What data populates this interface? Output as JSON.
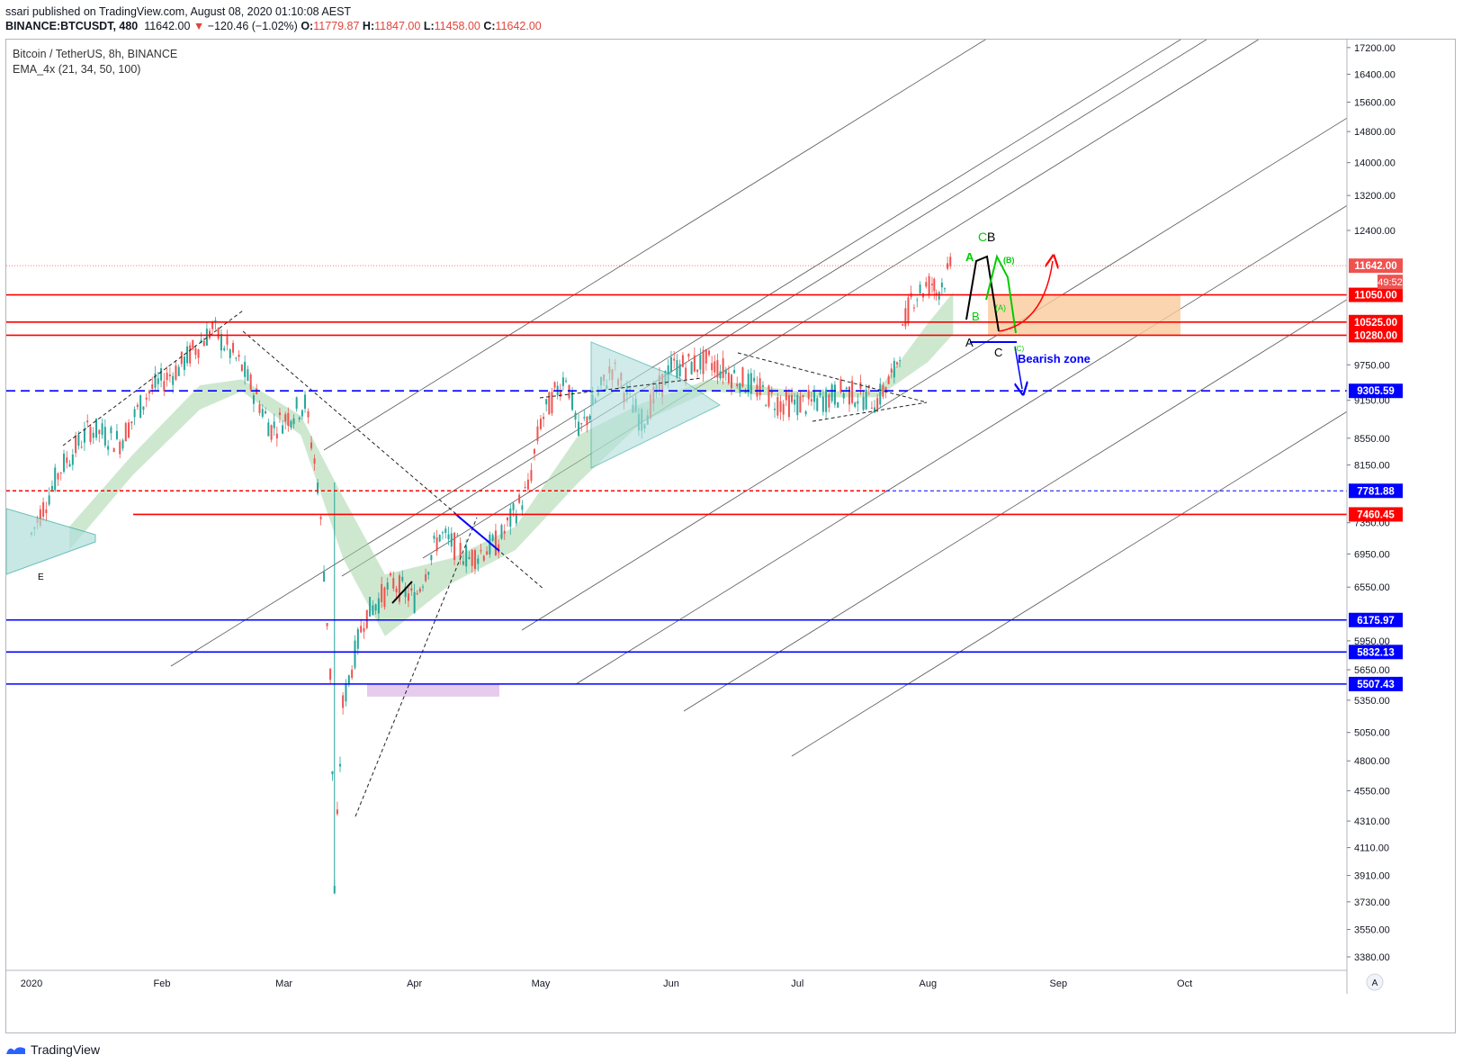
{
  "header": {
    "published": "ssari published on TradingView.com, August 08, 2020 01:10:08 AEST",
    "symbol": "BINANCE:BTCUSDT, 480",
    "price": "11642.00",
    "change": "−120.46 (−1.02%)",
    "o_label": "O:",
    "o_value": "11779.87",
    "h_label": "H:",
    "h_value": "11847.00",
    "l_label": "L:",
    "l_value": "11458.00",
    "c_label": "C:",
    "c_value": "11642.00"
  },
  "legend": {
    "title": "Bitcoin / TetherUS, 8h, BINANCE",
    "indicator": "EMA_4x (21, 34, 50, 100)"
  },
  "countdown": "49:52",
  "footer": {
    "brand": "TradingView"
  },
  "colors": {
    "up": "#26a69a",
    "down": "#ef5350",
    "level_red": "#ff0000",
    "level_blue": "#0000ff",
    "zone_orange": "#f9cb9c",
    "zone_pink": "#e1bee7",
    "ema_band": "#a5d6a7"
  },
  "chart_data": {
    "type": "candlestick",
    "x_axis": {
      "labels": [
        "2020",
        "Feb",
        "Mar",
        "Apr",
        "May",
        "Jun",
        "Jul",
        "Aug",
        "Sep",
        "Oct"
      ]
    },
    "y_axis": {
      "scale": "log",
      "ticks": [
        17200,
        16400,
        15600,
        14800,
        14000,
        13200,
        12400,
        11642,
        11050,
        10525,
        10280,
        9750,
        9305.59,
        9150,
        8550,
        8150,
        7781.88,
        7460.45,
        7350,
        6950,
        6550,
        6175.97,
        5950,
        5832.13,
        5650,
        5507.43,
        5350,
        5050,
        4800,
        4550,
        4310,
        4110,
        3910,
        3730,
        3550,
        3380
      ],
      "ylim": [
        3300,
        17500
      ]
    },
    "price_path": [
      {
        "d": "2020-01-01",
        "v": 7200
      },
      {
        "d": "2020-01-08",
        "v": 8100
      },
      {
        "d": "2020-01-15",
        "v": 8700
      },
      {
        "d": "2020-01-22",
        "v": 8500
      },
      {
        "d": "2020-01-29",
        "v": 9300
      },
      {
        "d": "2020-02-05",
        "v": 9700
      },
      {
        "d": "2020-02-13",
        "v": 10400
      },
      {
        "d": "2020-02-20",
        "v": 9700
      },
      {
        "d": "2020-02-27",
        "v": 8700
      },
      {
        "d": "2020-03-06",
        "v": 9100
      },
      {
        "d": "2020-03-09",
        "v": 7900
      },
      {
        "d": "2020-03-12",
        "v": 5600
      },
      {
        "d": "2020-03-13",
        "v": 3800
      },
      {
        "d": "2020-03-15",
        "v": 5300
      },
      {
        "d": "2020-03-20",
        "v": 6200
      },
      {
        "d": "2020-03-27",
        "v": 6600
      },
      {
        "d": "2020-04-01",
        "v": 6400
      },
      {
        "d": "2020-04-07",
        "v": 7200
      },
      {
        "d": "2020-04-14",
        "v": 6900
      },
      {
        "d": "2020-04-21",
        "v": 7100
      },
      {
        "d": "2020-04-28",
        "v": 7800
      },
      {
        "d": "2020-05-01",
        "v": 8800
      },
      {
        "d": "2020-05-07",
        "v": 9600
      },
      {
        "d": "2020-05-10",
        "v": 8600
      },
      {
        "d": "2020-05-18",
        "v": 9700
      },
      {
        "d": "2020-05-25",
        "v": 8800
      },
      {
        "d": "2020-06-01",
        "v": 9700
      },
      {
        "d": "2020-06-10",
        "v": 9800
      },
      {
        "d": "2020-06-20",
        "v": 9400
      },
      {
        "d": "2020-06-27",
        "v": 9100
      },
      {
        "d": "2020-07-05",
        "v": 9100
      },
      {
        "d": "2020-07-12",
        "v": 9300
      },
      {
        "d": "2020-07-20",
        "v": 9150
      },
      {
        "d": "2020-07-24",
        "v": 9600
      },
      {
        "d": "2020-07-28",
        "v": 11000
      },
      {
        "d": "2020-08-02",
        "v": 11300
      },
      {
        "d": "2020-08-03",
        "v": 11100
      },
      {
        "d": "2020-08-07",
        "v": 11642
      }
    ],
    "price_lines": [
      {
        "value": 11642.0,
        "label": "11642.00",
        "color": "#ef5350",
        "style": "dotted"
      },
      {
        "value": 11050.0,
        "label": "11050.00",
        "color": "#ff0000",
        "style": "solid"
      },
      {
        "value": 10525.0,
        "label": "10525.00",
        "color": "#ff0000",
        "style": "solid"
      },
      {
        "value": 10280.0,
        "label": "10280.00",
        "color": "#ff0000",
        "style": "solid"
      },
      {
        "value": 9305.59,
        "label": "9305.59",
        "color": "#0000ff",
        "style": "dashed"
      },
      {
        "value": 7781.88,
        "label": "7781.88",
        "color": "#0000ff",
        "style": "dashed"
      },
      {
        "value": 7460.45,
        "label": "7460.45",
        "color": "#ff0000",
        "style": "solid"
      },
      {
        "value": 6175.97,
        "label": "6175.97",
        "color": "#0000ff",
        "style": "solid"
      },
      {
        "value": 5832.13,
        "label": "5832.13",
        "color": "#0000ff",
        "style": "solid"
      },
      {
        "value": 5507.43,
        "label": "5507.43",
        "color": "#0000ff",
        "style": "solid"
      }
    ],
    "annotations": [
      "E",
      "A",
      "B",
      "C",
      "CB",
      "(B)",
      "(A)",
      "(C)",
      "Bearish zone"
    ]
  }
}
